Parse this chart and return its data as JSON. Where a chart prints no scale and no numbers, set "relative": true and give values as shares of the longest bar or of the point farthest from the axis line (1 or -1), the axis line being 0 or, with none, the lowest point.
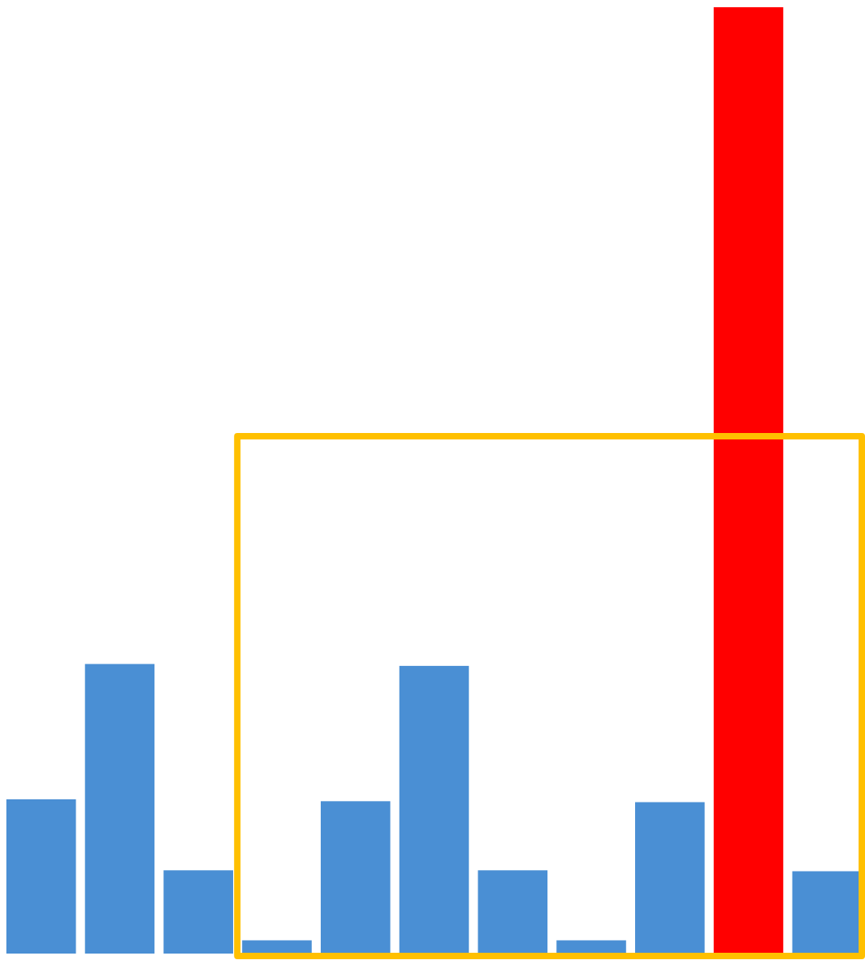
{
  "chart_data": {
    "type": "bar",
    "relative": true,
    "categories": [
      null,
      null,
      null,
      null,
      null,
      null,
      null,
      null,
      null,
      null,
      null
    ],
    "values": [
      0.163,
      0.306,
      0.088,
      0.014,
      0.161,
      0.304,
      0.088,
      0.014,
      0.16,
      1,
      0.087
    ],
    "colors": [
      "#4a8fd4",
      "#4a8fd4",
      "#4a8fd4",
      "#4a8fd4",
      "#4a8fd4",
      "#4a8fd4",
      "#4a8fd4",
      "#4a8fd4",
      "#4a8fd4",
      "#ff0000",
      "#4a8fd4"
    ]
  }
}
